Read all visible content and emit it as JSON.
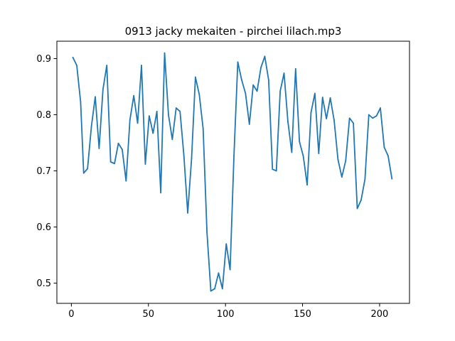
{
  "chart_data": {
    "type": "line",
    "title": "0913 jacky mekaiten - pirchei lilach.mp3",
    "xlabel": "",
    "ylabel": "",
    "xlim": [
      -9.4,
      219.4
    ],
    "ylim": [
      0.464,
      0.931
    ],
    "xticks": [
      0,
      50,
      100,
      150,
      200
    ],
    "yticks": [
      0.5,
      0.6,
      0.7,
      0.8,
      0.9
    ],
    "xtick_labels": [
      "0",
      "50",
      "100",
      "150",
      "200"
    ],
    "ytick_labels": [
      "0.5",
      "0.6",
      "0.7",
      "0.8",
      "0.9"
    ],
    "grid": false,
    "line_color": "#1f77b4",
    "series": [
      {
        "x": [
          1,
          3.5,
          6,
          8,
          10.5,
          13,
          15.5,
          18,
          20.5,
          23,
          25.5,
          28,
          30.5,
          33,
          35.5,
          38,
          40.5,
          43,
          45.5,
          48,
          50.5,
          53,
          55.5,
          58,
          60.5,
          63,
          65.5,
          68,
          70.5,
          73,
          75.5,
          78,
          80.5,
          83,
          85.5,
          88,
          90.5,
          93,
          95.5,
          98,
          100.5,
          103,
          105.5,
          108,
          110.5,
          113,
          115.5,
          118,
          120.5,
          123,
          125.5,
          128,
          130.5,
          133,
          135.5,
          138,
          140.5,
          143,
          145.5,
          148,
          150.5,
          153,
          155.5,
          158,
          160.5,
          163,
          165.5,
          168,
          170.5,
          173,
          175.5,
          178,
          180.5,
          183,
          185.5,
          188,
          190.5,
          193,
          195.5,
          198,
          200.5,
          203,
          205.5,
          208
        ],
        "y": [
          0.902,
          0.888,
          0.823,
          0.696,
          0.704,
          0.779,
          0.832,
          0.74,
          0.845,
          0.888,
          0.716,
          0.713,
          0.749,
          0.738,
          0.682,
          0.791,
          0.834,
          0.785,
          0.888,
          0.712,
          0.798,
          0.767,
          0.806,
          0.661,
          0.91,
          0.8,
          0.756,
          0.812,
          0.806,
          0.728,
          0.625,
          0.722,
          0.867,
          0.836,
          0.775,
          0.59,
          0.486,
          0.49,
          0.518,
          0.49,
          0.57,
          0.524,
          0.727,
          0.894,
          0.862,
          0.838,
          0.783,
          0.853,
          0.842,
          0.884,
          0.904,
          0.862,
          0.703,
          0.7,
          0.842,
          0.874,
          0.788,
          0.733,
          0.882,
          0.752,
          0.726,
          0.675,
          0.804,
          0.838,
          0.731,
          0.831,
          0.793,
          0.83,
          0.79,
          0.72,
          0.689,
          0.718,
          0.794,
          0.785,
          0.633,
          0.648,
          0.685,
          0.8,
          0.794,
          0.798,
          0.812,
          0.742,
          0.727,
          0.686
        ]
      }
    ]
  }
}
